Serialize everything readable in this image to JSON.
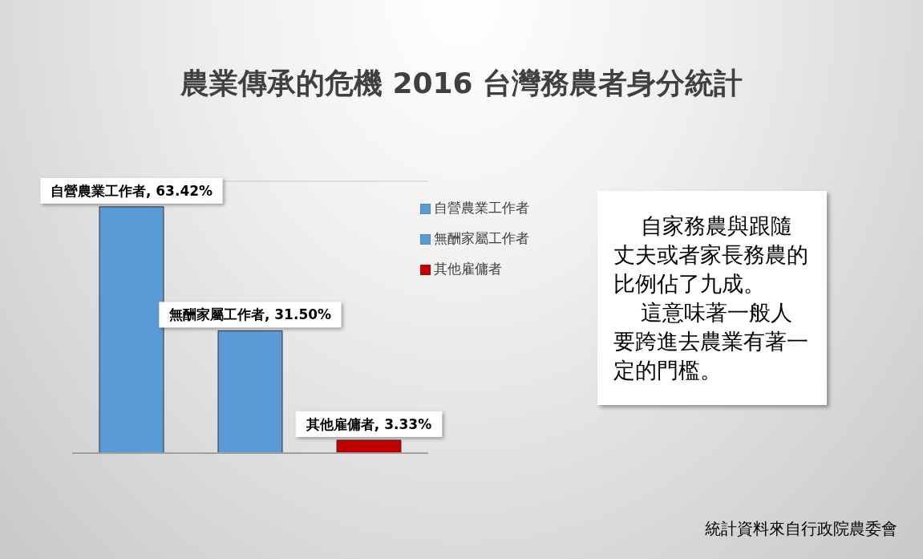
{
  "chart_data": {
    "type": "bar",
    "title": "農業傳承的危機 2016 台灣務農者身分統計",
    "categories": [
      null,
      null,
      null
    ],
    "stacked": true,
    "series": [
      {
        "name": "自營農業工作者",
        "color": "#5b9bd5",
        "values": [
          63.42,
          null,
          null
        ],
        "value_labels": [
          "自營農業工作者, 63.42%",
          null,
          null
        ]
      },
      {
        "name": "無酬家屬工作者",
        "color": "#5b9bd5",
        "values": [
          null,
          31.5,
          null
        ],
        "value_labels": [
          null,
          "無酬家屬工作者, 31.50%",
          null
        ]
      },
      {
        "name": "其他雇傭者",
        "color": "#c00000",
        "values": [
          null,
          null,
          3.33
        ],
        "value_labels": [
          null,
          null,
          "其他雇傭者, 3.33%"
        ]
      }
    ],
    "ylim": [
      0,
      70
    ],
    "grid": "y",
    "tick_labels": false,
    "legend": "top right",
    "annotations": [
      "自家務農與跟隨丈夫或者家長務農的比例佔了九成。",
      "這意味著一般人要跨進去農業有著一定的門檻。",
      "統計資料來自行政院農委會"
    ]
  }
}
